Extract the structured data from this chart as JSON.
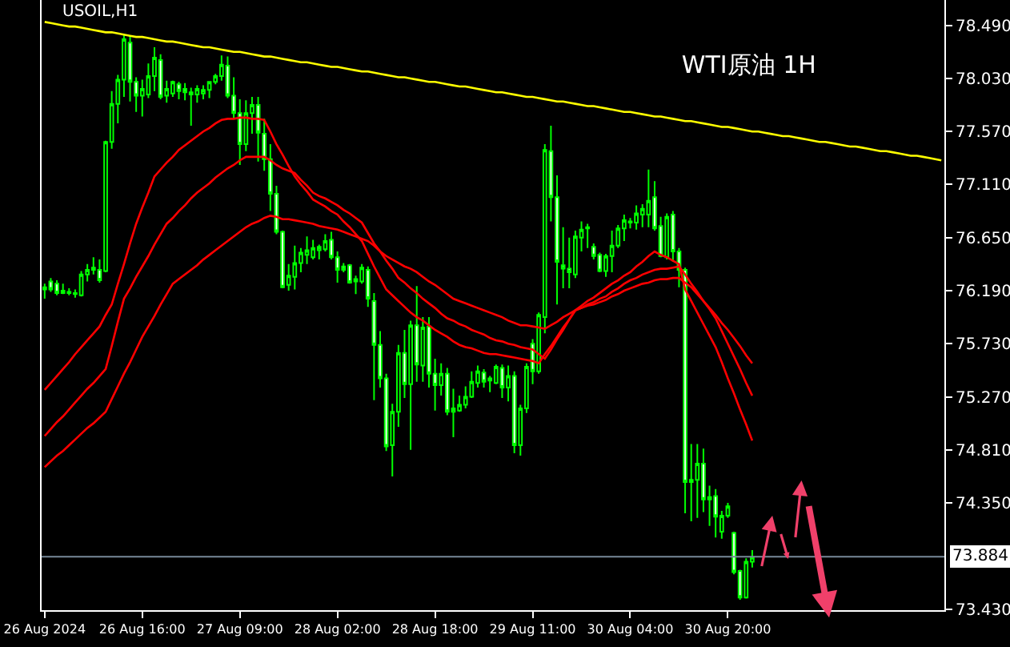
{
  "chart_data": {
    "type": "candlestick",
    "title": "WTI原油 1H",
    "subtitle": "USOIL,H1",
    "color": "#00ff00",
    "categories": [
      "26 Aug 2024",
      null,
      null,
      null,
      null,
      null,
      null,
      null,
      null,
      null,
      null,
      null,
      null,
      null,
      null,
      null,
      "26 Aug 16:00",
      null,
      null,
      null,
      null,
      null,
      null,
      null,
      null,
      null,
      null,
      null,
      null,
      null,
      null,
      null,
      "27 Aug 09:00",
      null,
      null,
      null,
      null,
      null,
      null,
      null,
      null,
      null,
      null,
      null,
      null,
      null,
      null,
      null,
      "28 Aug 02:00",
      null,
      null,
      null,
      null,
      null,
      null,
      null,
      null,
      null,
      null,
      null,
      null,
      null,
      null,
      null,
      "28 Aug 18:00",
      null,
      null,
      null,
      null,
      null,
      null,
      null,
      null,
      null,
      null,
      null,
      null,
      null,
      null,
      null,
      "29 Aug 11:00",
      null,
      null,
      null,
      null,
      null,
      null,
      null,
      null,
      null,
      null,
      null,
      null,
      null,
      null,
      null,
      "30 Aug 04:00",
      null,
      null,
      null,
      null,
      null,
      null,
      null,
      null,
      null,
      null,
      null,
      null,
      null,
      null,
      null,
      "30 Aug 20:00",
      null,
      null,
      null,
      null,
      null,
      null,
      null,
      null,
      null,
      null,
      null,
      null,
      null,
      null,
      null,
      null,
      null,
      null,
      null,
      null,
      null,
      null,
      null,
      null,
      null,
      null,
      null,
      null,
      null,
      null,
      null,
      null,
      null,
      null,
      null
    ],
    "ohlc": [
      [
        76.2,
        76.25,
        76.12,
        76.22
      ],
      [
        76.27,
        76.3,
        76.18,
        76.2
      ],
      [
        76.25,
        76.28,
        76.15,
        76.17
      ],
      [
        76.19,
        76.25,
        76.16,
        76.17
      ],
      [
        76.18,
        76.21,
        76.15,
        76.17
      ],
      [
        76.17,
        76.2,
        76.13,
        76.16
      ],
      [
        76.15,
        76.36,
        76.14,
        76.33
      ],
      [
        76.33,
        76.42,
        76.27,
        76.37
      ],
      [
        76.39,
        76.48,
        76.33,
        76.37
      ],
      [
        76.37,
        76.46,
        76.26,
        76.28
      ],
      [
        76.36,
        77.49,
        76.35,
        77.48
      ],
      [
        77.48,
        77.92,
        77.42,
        77.81
      ],
      [
        77.81,
        78.06,
        77.64,
        78.02
      ],
      [
        78.02,
        78.41,
        77.87,
        78.37
      ],
      [
        78.34,
        78.4,
        77.83,
        78.0
      ],
      [
        78.0,
        78.04,
        77.74,
        77.88
      ],
      [
        77.88,
        78.02,
        77.7,
        77.94
      ],
      [
        77.89,
        78.16,
        77.86,
        78.05
      ],
      [
        78.05,
        78.3,
        77.92,
        78.21
      ],
      [
        78.19,
        78.24,
        77.85,
        77.87
      ],
      [
        77.88,
        78.01,
        77.82,
        77.94
      ],
      [
        77.9,
        78.01,
        77.87,
        78.0
      ],
      [
        77.98,
        78.0,
        77.85,
        77.92
      ],
      [
        77.94,
        77.99,
        77.84,
        77.91
      ],
      [
        77.91,
        77.95,
        77.62,
        77.89
      ],
      [
        77.89,
        77.97,
        77.82,
        77.94
      ],
      [
        77.9,
        77.97,
        77.85,
        77.93
      ],
      [
        77.93,
        78.0,
        77.86,
        78.0
      ],
      [
        78.0,
        78.07,
        77.98,
        78.05
      ],
      [
        78.05,
        78.23,
        78.01,
        78.15
      ],
      [
        78.14,
        78.22,
        77.86,
        77.88
      ],
      [
        77.88,
        78.04,
        77.68,
        77.73
      ],
      [
        77.73,
        77.85,
        77.28,
        77.46
      ],
      [
        77.46,
        77.84,
        77.4,
        77.73
      ],
      [
        77.73,
        77.87,
        77.55,
        77.8
      ],
      [
        77.8,
        77.87,
        77.31,
        77.56
      ],
      [
        77.55,
        77.68,
        77.23,
        77.33
      ],
      [
        77.33,
        77.46,
        76.88,
        77.03
      ],
      [
        77.03,
        77.1,
        76.68,
        76.7
      ],
      [
        76.7,
        76.71,
        76.21,
        76.22
      ],
      [
        76.24,
        76.42,
        76.19,
        76.32
      ],
      [
        76.31,
        76.58,
        76.2,
        76.43
      ],
      [
        76.43,
        76.56,
        76.35,
        76.52
      ],
      [
        76.5,
        76.66,
        76.42,
        76.54
      ],
      [
        76.48,
        76.63,
        76.46,
        76.56
      ],
      [
        76.54,
        76.59,
        76.46,
        76.57
      ],
      [
        76.55,
        76.68,
        76.53,
        76.62
      ],
      [
        76.63,
        76.7,
        76.46,
        76.48
      ],
      [
        76.48,
        76.53,
        76.26,
        76.37
      ],
      [
        76.4,
        76.43,
        76.35,
        76.37
      ],
      [
        76.41,
        76.42,
        76.25,
        76.26
      ],
      [
        76.27,
        76.32,
        76.16,
        76.29
      ],
      [
        76.27,
        76.42,
        76.25,
        76.39
      ],
      [
        76.37,
        76.4,
        76.05,
        76.12
      ],
      [
        76.1,
        76.17,
        75.24,
        75.72
      ],
      [
        75.72,
        75.84,
        75.35,
        75.43
      ],
      [
        75.43,
        75.47,
        74.8,
        74.84
      ],
      [
        74.85,
        75.21,
        74.58,
        75.14
      ],
      [
        75.14,
        75.72,
        75.01,
        75.65
      ],
      [
        75.65,
        75.85,
        75.26,
        75.38
      ],
      [
        75.38,
        75.93,
        74.81,
        75.89
      ],
      [
        75.89,
        76.23,
        75.4,
        75.55
      ],
      [
        75.54,
        75.96,
        75.4,
        75.87
      ],
      [
        75.88,
        75.96,
        75.35,
        75.47
      ],
      [
        75.47,
        75.6,
        75.15,
        75.37
      ],
      [
        75.37,
        75.56,
        75.28,
        75.47
      ],
      [
        75.47,
        75.52,
        75.11,
        75.14
      ],
      [
        75.14,
        75.34,
        74.92,
        75.17
      ],
      [
        75.15,
        75.28,
        75.14,
        75.2
      ],
      [
        75.2,
        75.36,
        75.17,
        75.27
      ],
      [
        75.27,
        75.49,
        75.26,
        75.4
      ],
      [
        75.39,
        75.54,
        75.35,
        75.49
      ],
      [
        75.48,
        75.51,
        75.35,
        75.4
      ],
      [
        75.41,
        75.45,
        75.31,
        75.43
      ],
      [
        75.39,
        75.55,
        75.38,
        75.53
      ],
      [
        75.52,
        75.55,
        75.26,
        75.35
      ],
      [
        75.35,
        75.54,
        75.23,
        75.45
      ],
      [
        75.45,
        75.49,
        74.78,
        74.85
      ],
      [
        74.85,
        75.2,
        74.76,
        75.17
      ],
      [
        75.17,
        75.56,
        75.13,
        75.53
      ],
      [
        75.73,
        75.77,
        75.38,
        75.49
      ],
      [
        75.49,
        76.0,
        75.47,
        75.98
      ],
      [
        75.96,
        77.46,
        75.82,
        77.41
      ],
      [
        77.4,
        77.62,
        76.79,
        77.0
      ],
      [
        77.0,
        77.19,
        76.07,
        76.44
      ],
      [
        76.41,
        76.74,
        76.21,
        76.38
      ],
      [
        76.38,
        76.65,
        76.21,
        76.35
      ],
      [
        76.33,
        76.71,
        76.3,
        76.66
      ],
      [
        76.65,
        76.79,
        76.53,
        76.72
      ],
      [
        76.73,
        76.77,
        76.56,
        76.74
      ],
      [
        76.57,
        76.6,
        76.46,
        76.49
      ],
      [
        76.5,
        76.52,
        76.35,
        76.36
      ],
      [
        76.36,
        76.51,
        76.31,
        76.49
      ],
      [
        76.49,
        76.71,
        76.35,
        76.58
      ],
      [
        76.58,
        76.76,
        76.56,
        76.73
      ],
      [
        76.73,
        76.85,
        76.62,
        76.8
      ],
      [
        76.79,
        76.82,
        76.73,
        76.78
      ],
      [
        76.78,
        76.93,
        76.72,
        76.86
      ],
      [
        76.85,
        76.94,
        76.74,
        76.9
      ],
      [
        76.85,
        77.24,
        76.74,
        76.97
      ],
      [
        77.0,
        77.14,
        76.71,
        76.73
      ],
      [
        76.75,
        76.83,
        76.48,
        76.49
      ],
      [
        76.48,
        76.86,
        76.46,
        76.83
      ],
      [
        76.85,
        76.88,
        76.44,
        76.53
      ],
      [
        76.53,
        76.56,
        76.22,
        76.37
      ],
      [
        76.37,
        76.39,
        74.26,
        74.53
      ],
      [
        74.55,
        74.86,
        74.19,
        74.53
      ],
      [
        74.55,
        74.86,
        74.22,
        74.69
      ],
      [
        74.69,
        74.82,
        74.27,
        74.38
      ],
      [
        74.4,
        74.5,
        74.15,
        74.38
      ],
      [
        74.41,
        74.47,
        74.05,
        74.23
      ],
      [
        74.1,
        74.28,
        74.04,
        74.24
      ],
      [
        74.24,
        74.35,
        74.22,
        74.32
      ],
      [
        74.09,
        74.1,
        73.73,
        73.75
      ],
      [
        73.76,
        73.77,
        73.51,
        73.53
      ],
      [
        73.53,
        73.87,
        73.52,
        73.84
      ],
      [
        73.84,
        73.94,
        73.79,
        73.88
      ],
      null,
      null,
      null,
      null,
      null,
      null,
      null,
      null,
      null,
      null,
      null,
      null,
      null,
      null,
      null,
      null,
      null,
      null,
      null,
      null,
      null,
      null,
      null,
      null,
      null,
      null,
      null,
      null,
      null,
      null,
      null
    ],
    "series": [
      {
        "type": "line",
        "color": "#ff0000",
        "values": [
          75.33,
          75.39,
          75.45,
          75.51,
          75.57,
          75.64,
          75.7,
          75.76,
          75.82,
          75.88,
          75.98,
          76.07,
          76.25,
          76.42,
          76.6,
          76.77,
          76.91,
          77.04,
          77.18,
          77.24,
          77.3,
          77.35,
          77.41,
          77.45,
          77.49,
          77.53,
          77.57,
          77.6,
          77.64,
          77.67,
          77.68,
          77.68,
          77.69,
          77.69,
          77.68,
          77.68,
          77.67,
          77.57,
          77.46,
          77.37,
          77.27,
          77.18,
          77.11,
          77.05,
          76.98,
          76.95,
          76.92,
          76.88,
          76.85,
          76.79,
          76.74,
          76.68,
          76.62,
          76.51,
          76.4,
          76.3,
          76.2,
          76.15,
          76.1,
          76.05,
          76.0,
          75.96,
          75.93,
          75.89,
          75.85,
          75.82,
          75.79,
          75.75,
          75.72,
          75.7,
          75.69,
          75.67,
          75.65,
          75.64,
          75.64,
          75.63,
          75.62,
          75.61,
          75.6,
          75.59,
          75.58,
          75.56,
          75.64,
          75.71,
          75.79,
          75.87,
          75.94,
          76.02,
          76.06,
          76.1,
          76.13,
          76.17,
          76.21,
          76.25,
          76.28,
          76.32,
          76.35,
          76.4,
          76.44,
          76.49,
          76.53,
          76.5,
          76.48,
          76.45,
          76.42,
          76.2,
          76.1,
          76.0,
          75.9,
          75.8,
          75.7,
          75.57,
          75.43,
          75.3,
          75.16,
          75.03,
          74.89,
          null,
          null,
          null,
          null,
          null,
          null,
          null,
          null,
          null,
          null,
          null,
          null,
          null,
          null,
          null,
          null,
          null,
          null,
          null,
          null,
          null,
          null,
          null,
          null,
          null,
          null,
          null,
          null,
          null,
          null,
          null
        ]
      },
      {
        "type": "line",
        "color": "#ff0000",
        "values": [
          74.93,
          74.99,
          75.05,
          75.1,
          75.16,
          75.22,
          75.28,
          75.34,
          75.39,
          75.45,
          75.51,
          75.71,
          75.92,
          76.12,
          76.21,
          76.31,
          76.4,
          76.49,
          76.59,
          76.68,
          76.77,
          76.82,
          76.88,
          76.93,
          76.99,
          77.04,
          77.08,
          77.12,
          77.17,
          77.21,
          77.25,
          77.28,
          77.32,
          77.35,
          77.35,
          77.35,
          77.35,
          77.32,
          77.28,
          77.25,
          77.23,
          77.21,
          77.15,
          77.1,
          77.04,
          77.01,
          76.99,
          76.96,
          76.93,
          76.89,
          76.86,
          76.82,
          76.78,
          76.69,
          76.6,
          76.53,
          76.45,
          76.38,
          76.3,
          76.26,
          76.21,
          76.17,
          76.12,
          76.08,
          76.04,
          75.99,
          75.95,
          75.93,
          75.9,
          75.88,
          75.85,
          75.83,
          75.81,
          75.78,
          75.76,
          75.75,
          75.73,
          75.72,
          75.7,
          75.69,
          75.68,
          75.64,
          75.6,
          75.68,
          75.77,
          75.85,
          75.94,
          76.02,
          76.04,
          76.07,
          76.09,
          76.12,
          76.14,
          76.18,
          76.21,
          76.25,
          76.28,
          76.3,
          76.33,
          76.35,
          76.37,
          76.38,
          76.38,
          76.39,
          76.4,
          76.33,
          76.25,
          76.18,
          76.1,
          76.03,
          75.95,
          75.84,
          75.73,
          75.62,
          75.51,
          75.39,
          75.28,
          null,
          null,
          null,
          null,
          null,
          null,
          null,
          null,
          null,
          null,
          null,
          null,
          null,
          null,
          null,
          null,
          null,
          null,
          null,
          null,
          null,
          null,
          null,
          null,
          null,
          null,
          null,
          null,
          null,
          null,
          null
        ]
      },
      {
        "type": "line",
        "color": "#ff0000",
        "values": [
          74.66,
          74.71,
          74.76,
          74.8,
          74.85,
          74.9,
          74.95,
          75.0,
          75.04,
          75.09,
          75.14,
          75.25,
          75.36,
          75.47,
          75.57,
          75.68,
          75.79,
          75.88,
          75.97,
          76.07,
          76.16,
          76.25,
          76.29,
          76.33,
          76.37,
          76.41,
          76.46,
          76.5,
          76.54,
          76.58,
          76.62,
          76.66,
          76.7,
          76.74,
          76.77,
          76.79,
          76.82,
          76.84,
          76.83,
          76.81,
          76.81,
          76.8,
          76.79,
          76.78,
          76.77,
          76.75,
          76.74,
          76.73,
          76.72,
          76.7,
          76.68,
          76.66,
          76.64,
          76.62,
          76.58,
          76.53,
          76.49,
          76.46,
          76.43,
          76.4,
          76.38,
          76.35,
          76.31,
          76.27,
          76.24,
          76.2,
          76.16,
          76.12,
          76.1,
          76.08,
          76.06,
          76.04,
          76.02,
          76.0,
          75.98,
          75.96,
          75.93,
          75.91,
          75.89,
          75.89,
          75.88,
          75.87,
          75.86,
          75.89,
          75.92,
          75.96,
          75.99,
          76.02,
          76.04,
          76.06,
          76.07,
          76.09,
          76.11,
          76.14,
          76.16,
          76.19,
          76.21,
          76.23,
          76.25,
          76.26,
          76.28,
          76.29,
          76.29,
          76.3,
          76.3,
          76.26,
          76.22,
          76.16,
          76.1,
          76.04,
          75.98,
          75.91,
          75.85,
          75.78,
          75.71,
          75.63,
          75.56,
          null,
          null,
          null,
          null,
          null,
          null,
          null,
          null,
          null,
          null,
          null,
          null,
          null,
          null,
          null,
          null,
          null,
          null,
          null,
          null,
          null,
          null,
          null,
          null,
          null,
          null,
          null,
          null,
          null,
          null,
          null
        ]
      },
      {
        "type": "line",
        "color": "#ffff00",
        "values": [
          78.52,
          78.51,
          78.5,
          78.49,
          78.48,
          78.48,
          78.47,
          78.46,
          78.45,
          78.44,
          78.43,
          78.43,
          78.42,
          78.41,
          78.4,
          78.39,
          78.39,
          78.38,
          78.37,
          78.36,
          78.35,
          78.35,
          78.34,
          78.33,
          78.32,
          78.31,
          78.3,
          78.3,
          78.29,
          78.28,
          78.27,
          78.26,
          78.26,
          78.25,
          78.24,
          78.23,
          78.22,
          78.22,
          78.21,
          78.2,
          78.19,
          78.18,
          78.17,
          78.17,
          78.16,
          78.15,
          78.14,
          78.13,
          78.13,
          78.12,
          78.11,
          78.1,
          78.09,
          78.09,
          78.08,
          78.07,
          78.06,
          78.05,
          78.04,
          78.04,
          78.03,
          78.02,
          78.01,
          78.0,
          78.0,
          77.99,
          77.98,
          77.97,
          77.96,
          77.96,
          77.95,
          77.94,
          77.93,
          77.92,
          77.91,
          77.91,
          77.9,
          77.89,
          77.88,
          77.87,
          77.87,
          77.86,
          77.85,
          77.84,
          77.83,
          77.83,
          77.82,
          77.81,
          77.8,
          77.79,
          77.79,
          77.78,
          77.77,
          77.76,
          77.75,
          77.74,
          77.74,
          77.73,
          77.72,
          77.71,
          77.7,
          77.7,
          77.69,
          77.68,
          77.67,
          77.66,
          77.66,
          77.65,
          77.64,
          77.63,
          77.62,
          77.61,
          77.61,
          77.6,
          77.59,
          77.58,
          77.57,
          77.57,
          77.56,
          77.55,
          77.54,
          77.53,
          77.53,
          77.52,
          77.51,
          77.5,
          77.49,
          77.48,
          77.48,
          77.47,
          77.46,
          77.45,
          77.44,
          77.44,
          77.43,
          77.42,
          77.41,
          77.4,
          77.4,
          77.39,
          77.38,
          77.37,
          77.36,
          77.36,
          77.35,
          77.34,
          77.33,
          77.32
        ]
      }
    ],
    "ylim": [
      73.42,
      78.71
    ],
    "yticks": [
      {
        "value": 78.49,
        "label": "78.490"
      },
      {
        "value": 78.03,
        "label": "78.030"
      },
      {
        "value": 77.57,
        "label": "77.570"
      },
      {
        "value": 77.11,
        "label": "77.110"
      },
      {
        "value": 76.65,
        "label": "76.650"
      },
      {
        "value": 76.19,
        "label": "76.190"
      },
      {
        "value": 75.73,
        "label": "75.730"
      },
      {
        "value": 75.27,
        "label": "75.270"
      },
      {
        "value": 74.81,
        "label": "74.810"
      },
      {
        "value": 74.35,
        "label": "74.350"
      },
      {
        "value": 73.43,
        "label": "73.430"
      }
    ],
    "ref_lines": [
      {
        "axis": "y",
        "value": 73.884,
        "label": "73.884",
        "color": "#778899"
      }
    ],
    "grid": false
  }
}
